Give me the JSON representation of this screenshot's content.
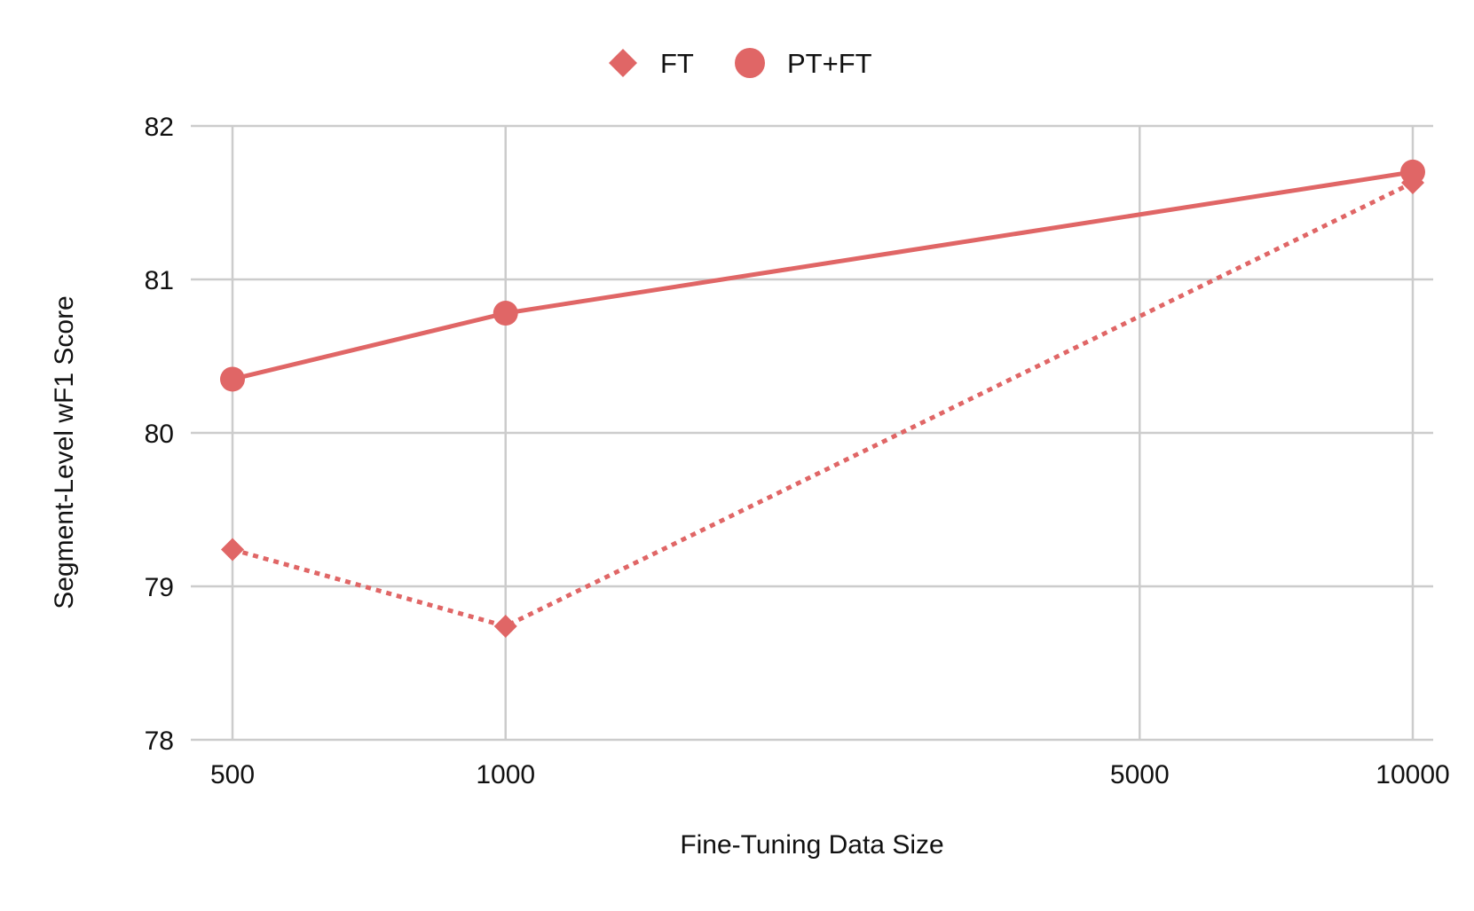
{
  "colors": {
    "series": "#e06666",
    "grid": "#cccccc",
    "text": "#111111"
  },
  "chart_data": {
    "type": "line",
    "title": "",
    "xlabel": "Fine-Tuning Data Size",
    "ylabel": "Segment-Level wF1 Score",
    "x_scale": "log",
    "x": [
      500,
      1000,
      5000,
      10000
    ],
    "x_tick_labels": [
      "500",
      "1000",
      "5000",
      "10000"
    ],
    "y_ticks": [
      78,
      79,
      80,
      81,
      82
    ],
    "ylim": [
      78,
      82
    ],
    "grid": true,
    "legend_position": "top-center",
    "series": [
      {
        "name": "FT",
        "marker": "diamond",
        "line_style": "dotted",
        "x": [
          500,
          1000,
          10000
        ],
        "values": [
          79.24,
          78.74,
          81.63
        ]
      },
      {
        "name": "PT+FT",
        "marker": "circle",
        "line_style": "solid",
        "x": [
          500,
          1000,
          10000
        ],
        "values": [
          80.35,
          80.78,
          81.7
        ]
      }
    ]
  }
}
